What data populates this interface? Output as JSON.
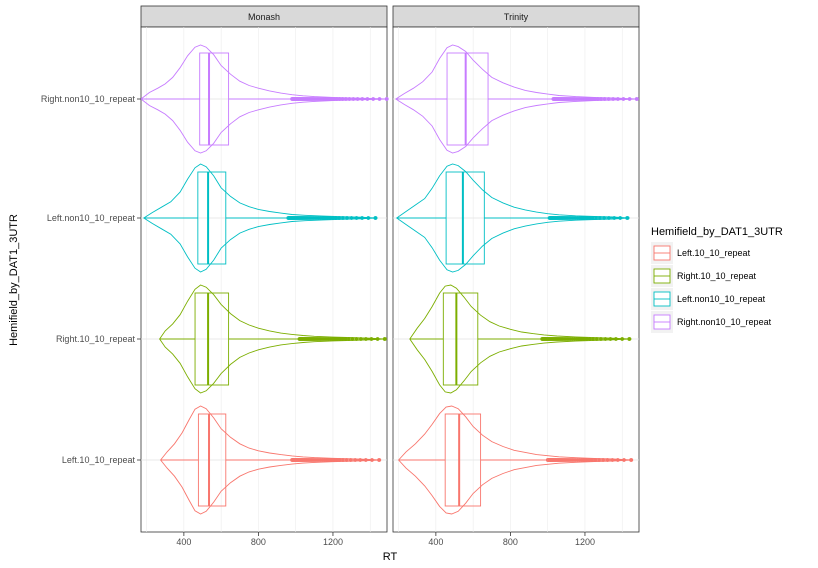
{
  "chart_data": {
    "type": "violin+boxplot",
    "xlabel": "RT",
    "ylabel": "Hemifield_by_DAT1_3UTR",
    "xlim": [
      170,
      1490
    ],
    "x_ticks": [
      400,
      800,
      1200
    ],
    "legend": {
      "title": "Hemifield_by_DAT1_3UTR",
      "position": "right",
      "entries": [
        "Left.10_10_repeat",
        "Right.10_10_repeat",
        "Left.non10_10_repeat",
        "Right.non10_10_repeat"
      ]
    },
    "categories": [
      "Right.non10_10_repeat",
      "Left.non10_10_repeat",
      "Right.10_10_repeat",
      "Left.10_10_repeat"
    ],
    "colors": {
      "Left.10_10_repeat": "#F8766D",
      "Right.10_10_repeat": "#7CAE00",
      "Left.non10_10_repeat": "#00BFC4",
      "Right.non10_10_repeat": "#C77CFF"
    },
    "grid": true,
    "panels": [
      {
        "title": "Monash",
        "groups": [
          {
            "name": "Right.non10_10_repeat",
            "whisker_low": 170,
            "q1": 485,
            "median": 535,
            "q3": 640,
            "whisker_high": 1490,
            "outliers_from": 980,
            "outliers_to": 1490,
            "density": [
              [
                170,
                0
              ],
              [
                215,
                0.12
              ],
              [
                260,
                0.2
              ],
              [
                300,
                0.28
              ],
              [
                340,
                0.4
              ],
              [
                380,
                0.58
              ],
              [
                420,
                0.8
              ],
              [
                460,
                0.96
              ],
              [
                490,
                1.0
              ],
              [
                520,
                0.96
              ],
              [
                560,
                0.82
              ],
              [
                600,
                0.62
              ],
              [
                650,
                0.46
              ],
              [
                700,
                0.33
              ],
              [
                750,
                0.25
              ],
              [
                800,
                0.2
              ],
              [
                860,
                0.15
              ],
              [
                920,
                0.11
              ],
              [
                980,
                0.08
              ],
              [
                1040,
                0.06
              ],
              [
                1100,
                0.045
              ],
              [
                1200,
                0.03
              ],
              [
                1300,
                0.02
              ],
              [
                1400,
                0.012
              ],
              [
                1490,
                0
              ]
            ]
          },
          {
            "name": "Left.non10_10_repeat",
            "whisker_low": 185,
            "q1": 475,
            "median": 530,
            "q3": 625,
            "whisker_high": 1430,
            "outliers_from": 960,
            "outliers_to": 1430,
            "density": [
              [
                185,
                0
              ],
              [
                230,
                0.1
              ],
              [
                280,
                0.2
              ],
              [
                330,
                0.3
              ],
              [
                380,
                0.48
              ],
              [
                420,
                0.72
              ],
              [
                460,
                0.93
              ],
              [
                490,
                1.0
              ],
              [
                520,
                0.95
              ],
              [
                560,
                0.78
              ],
              [
                600,
                0.56
              ],
              [
                650,
                0.4
              ],
              [
                700,
                0.28
              ],
              [
                750,
                0.21
              ],
              [
                800,
                0.16
              ],
              [
                860,
                0.12
              ],
              [
                920,
                0.09
              ],
              [
                980,
                0.065
              ],
              [
                1050,
                0.05
              ],
              [
                1150,
                0.035
              ],
              [
                1250,
                0.025
              ],
              [
                1350,
                0.015
              ],
              [
                1430,
                0
              ]
            ]
          },
          {
            "name": "Right.10_10_repeat",
            "whisker_low": 270,
            "q1": 460,
            "median": 530,
            "q3": 640,
            "whisker_high": 1480,
            "outliers_from": 1020,
            "outliers_to": 1480,
            "density": [
              [
                270,
                0
              ],
              [
                300,
                0.15
              ],
              [
                340,
                0.28
              ],
              [
                380,
                0.45
              ],
              [
                420,
                0.7
              ],
              [
                460,
                0.92
              ],
              [
                490,
                1.0
              ],
              [
                520,
                0.96
              ],
              [
                560,
                0.82
              ],
              [
                600,
                0.64
              ],
              [
                650,
                0.47
              ],
              [
                700,
                0.34
              ],
              [
                750,
                0.26
              ],
              [
                800,
                0.2
              ],
              [
                860,
                0.15
              ],
              [
                920,
                0.11
              ],
              [
                980,
                0.085
              ],
              [
                1040,
                0.065
              ],
              [
                1100,
                0.05
              ],
              [
                1200,
                0.035
              ],
              [
                1300,
                0.025
              ],
              [
                1400,
                0.015
              ],
              [
                1480,
                0
              ]
            ]
          },
          {
            "name": "Left.10_10_repeat",
            "whisker_low": 275,
            "q1": 478,
            "median": 535,
            "q3": 625,
            "whisker_high": 1450,
            "outliers_from": 980,
            "outliers_to": 1450,
            "density": [
              [
                275,
                0
              ],
              [
                310,
                0.15
              ],
              [
                350,
                0.3
              ],
              [
                390,
                0.5
              ],
              [
                430,
                0.76
              ],
              [
                460,
                0.94
              ],
              [
                490,
                1.0
              ],
              [
                520,
                0.95
              ],
              [
                560,
                0.78
              ],
              [
                600,
                0.58
              ],
              [
                650,
                0.42
              ],
              [
                700,
                0.3
              ],
              [
                750,
                0.22
              ],
              [
                800,
                0.17
              ],
              [
                860,
                0.13
              ],
              [
                920,
                0.1
              ],
              [
                980,
                0.075
              ],
              [
                1040,
                0.058
              ],
              [
                1100,
                0.045
              ],
              [
                1200,
                0.032
              ],
              [
                1300,
                0.022
              ],
              [
                1400,
                0.012
              ],
              [
                1450,
                0
              ]
            ]
          }
        ]
      },
      {
        "title": "Trinity",
        "groups": [
          {
            "name": "Right.non10_10_repeat",
            "whisker_low": 185,
            "q1": 460,
            "median": 560,
            "q3": 680,
            "whisker_high": 1480,
            "outliers_from": 1030,
            "outliers_to": 1480,
            "density": [
              [
                185,
                0
              ],
              [
                230,
                0.1
              ],
              [
                280,
                0.2
              ],
              [
                330,
                0.32
              ],
              [
                380,
                0.5
              ],
              [
                420,
                0.75
              ],
              [
                460,
                0.95
              ],
              [
                490,
                1.0
              ],
              [
                520,
                0.97
              ],
              [
                560,
                0.88
              ],
              [
                600,
                0.72
              ],
              [
                650,
                0.55
              ],
              [
                700,
                0.4
              ],
              [
                760,
                0.3
              ],
              [
                820,
                0.22
              ],
              [
                880,
                0.16
              ],
              [
                940,
                0.12
              ],
              [
                1000,
                0.09
              ],
              [
                1060,
                0.065
              ],
              [
                1150,
                0.045
              ],
              [
                1250,
                0.03
              ],
              [
                1350,
                0.02
              ],
              [
                1480,
                0
              ]
            ]
          },
          {
            "name": "Left.non10_10_repeat",
            "whisker_low": 190,
            "q1": 455,
            "median": 545,
            "q3": 660,
            "whisker_high": 1430,
            "outliers_from": 1010,
            "outliers_to": 1430,
            "density": [
              [
                190,
                0
              ],
              [
                240,
                0.12
              ],
              [
                290,
                0.24
              ],
              [
                340,
                0.36
              ],
              [
                380,
                0.55
              ],
              [
                420,
                0.78
              ],
              [
                460,
                0.96
              ],
              [
                490,
                1.0
              ],
              [
                520,
                0.97
              ],
              [
                560,
                0.86
              ],
              [
                600,
                0.7
              ],
              [
                650,
                0.52
              ],
              [
                700,
                0.38
              ],
              [
                760,
                0.28
              ],
              [
                820,
                0.2
              ],
              [
                880,
                0.15
              ],
              [
                940,
                0.11
              ],
              [
                1000,
                0.08
              ],
              [
                1060,
                0.06
              ],
              [
                1150,
                0.04
              ],
              [
                1250,
                0.028
              ],
              [
                1350,
                0.018
              ],
              [
                1430,
                0
              ]
            ]
          },
          {
            "name": "Right.10_10_repeat",
            "whisker_low": 260,
            "q1": 440,
            "median": 510,
            "q3": 625,
            "whisker_high": 1440,
            "outliers_from": 970,
            "outliers_to": 1440,
            "density": [
              [
                260,
                0
              ],
              [
                300,
                0.2
              ],
              [
                340,
                0.38
              ],
              [
                380,
                0.6
              ],
              [
                420,
                0.85
              ],
              [
                450,
                0.98
              ],
              [
                480,
                1.0
              ],
              [
                510,
                0.94
              ],
              [
                550,
                0.78
              ],
              [
                590,
                0.6
              ],
              [
                640,
                0.44
              ],
              [
                690,
                0.32
              ],
              [
                740,
                0.24
              ],
              [
                800,
                0.18
              ],
              [
                860,
                0.13
              ],
              [
                920,
                0.1
              ],
              [
                980,
                0.075
              ],
              [
                1050,
                0.055
              ],
              [
                1150,
                0.038
              ],
              [
                1250,
                0.025
              ],
              [
                1350,
                0.015
              ],
              [
                1440,
                0
              ]
            ]
          },
          {
            "name": "Left.10_10_repeat",
            "whisker_low": 200,
            "q1": 450,
            "median": 525,
            "q3": 640,
            "whisker_high": 1450,
            "outliers_from": 1000,
            "outliers_to": 1450,
            "density": [
              [
                200,
                0
              ],
              [
                240,
                0.15
              ],
              [
                290,
                0.3
              ],
              [
                340,
                0.48
              ],
              [
                380,
                0.66
              ],
              [
                420,
                0.86
              ],
              [
                455,
                0.98
              ],
              [
                485,
                1.0
              ],
              [
                520,
                0.95
              ],
              [
                560,
                0.8
              ],
              [
                600,
                0.62
              ],
              [
                650,
                0.46
              ],
              [
                700,
                0.34
              ],
              [
                760,
                0.25
              ],
              [
                820,
                0.18
              ],
              [
                880,
                0.14
              ],
              [
                940,
                0.1
              ],
              [
                1000,
                0.08
              ],
              [
                1060,
                0.06
              ],
              [
                1150,
                0.042
              ],
              [
                1250,
                0.028
              ],
              [
                1350,
                0.018
              ],
              [
                1450,
                0
              ]
            ]
          }
        ]
      }
    ]
  }
}
